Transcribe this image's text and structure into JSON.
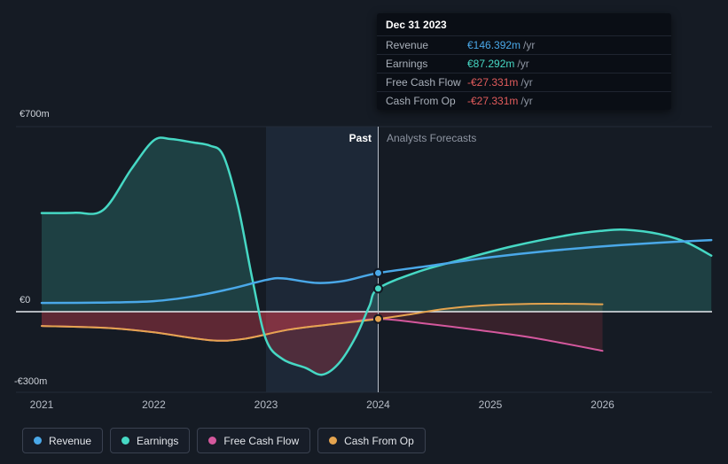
{
  "page": {
    "background": "#151b24"
  },
  "y_axis": {
    "labels": [
      "€700m",
      "€0",
      "-€300m"
    ]
  },
  "x_axis": [
    "2021",
    "2022",
    "2023",
    "2024",
    "2025",
    "2026"
  ],
  "period_labels": {
    "past": "Past",
    "forecast": "Analysts Forecasts"
  },
  "tooltip": {
    "date": "Dec 31 2023",
    "rows": [
      {
        "label": "Revenue",
        "value": "€146.392m",
        "suffix": "/yr",
        "color": "#4aa8e8"
      },
      {
        "label": "Earnings",
        "value": "€87.292m",
        "suffix": "/yr",
        "color": "#46d8c4"
      },
      {
        "label": "Free Cash Flow",
        "value": "-€27.331m",
        "suffix": "/yr",
        "color": "#e25c5c"
      },
      {
        "label": "Cash From Op",
        "value": "-€27.331m",
        "suffix": "/yr",
        "color": "#e25c5c"
      }
    ]
  },
  "legend": [
    {
      "label": "Revenue",
      "color": "#4aa8e8"
    },
    {
      "label": "Earnings",
      "color": "#46d8c4"
    },
    {
      "label": "Free Cash Flow",
      "color": "#d4589d"
    },
    {
      "label": "Cash From Op",
      "color": "#e5a44f"
    }
  ],
  "chart_data": {
    "type": "line",
    "title": "",
    "x_range": [
      2020.77,
      2027.0
    ],
    "y_range": [
      -300,
      700
    ],
    "y_unit": "€m",
    "y_gridlines": [
      700,
      0,
      -300
    ],
    "past_until": 2024,
    "highlight_band": [
      2023,
      2024
    ],
    "colors": {
      "band": "#1d2837",
      "zero_line": "#e6e9ee",
      "divider": "#b9c0ca",
      "grid": "#242b38"
    },
    "series": [
      {
        "id": "free-cash-flow",
        "name": "Free Cash Flow",
        "color": "#d4589d",
        "width": 2,
        "fill_neg": "rgba(196,60,74,0.20)",
        "points": [
          [
            2021,
            -54
          ],
          [
            2021.6,
            -62
          ],
          [
            2022,
            -78
          ],
          [
            2022.5,
            -108
          ],
          [
            2022.8,
            -103
          ],
          [
            2023.2,
            -68
          ],
          [
            2023.6,
            -47
          ],
          [
            2024,
            -27.331
          ],
          [
            2024.4,
            -44
          ],
          [
            2024.9,
            -70
          ],
          [
            2025.4,
            -100
          ],
          [
            2026,
            -148
          ]
        ]
      },
      {
        "id": "cash-from-op",
        "name": "Cash From Op",
        "color": "#e5a44f",
        "width": 2,
        "fill_neg": "rgba(196,60,74,0.28)",
        "fill_pos": "rgba(229,164,79,0.14)",
        "points": [
          [
            2021,
            -54
          ],
          [
            2021.6,
            -62
          ],
          [
            2022,
            -78
          ],
          [
            2022.5,
            -108
          ],
          [
            2022.8,
            -103
          ],
          [
            2023.2,
            -68
          ],
          [
            2023.6,
            -47
          ],
          [
            2024,
            -27.331
          ],
          [
            2024.3,
            -9
          ],
          [
            2024.6,
            11
          ],
          [
            2025,
            25
          ],
          [
            2025.5,
            30
          ],
          [
            2026,
            28
          ]
        ]
      },
      {
        "id": "earnings",
        "name": "Earnings",
        "color": "#46d8c4",
        "width": 2.5,
        "fill_pos": "rgba(70,216,196,0.20)",
        "fill_neg": "rgba(196,60,74,0.30)",
        "points": [
          [
            2021,
            373
          ],
          [
            2021.3,
            374
          ],
          [
            2021.55,
            385
          ],
          [
            2021.8,
            540
          ],
          [
            2022,
            648
          ],
          [
            2022.15,
            653
          ],
          [
            2022.35,
            640
          ],
          [
            2022.5,
            628
          ],
          [
            2022.62,
            590
          ],
          [
            2022.75,
            400
          ],
          [
            2022.88,
            120
          ],
          [
            2023,
            -105
          ],
          [
            2023.15,
            -180
          ],
          [
            2023.35,
            -212
          ],
          [
            2023.5,
            -238
          ],
          [
            2023.65,
            -195
          ],
          [
            2023.8,
            -95
          ],
          [
            2023.92,
            20
          ],
          [
            2024,
            87.292
          ],
          [
            2024.35,
            150
          ],
          [
            2024.75,
            198
          ],
          [
            2025.2,
            248
          ],
          [
            2025.7,
            290
          ],
          [
            2026,
            306
          ],
          [
            2026.2,
            310
          ],
          [
            2026.5,
            294
          ],
          [
            2026.75,
            262
          ],
          [
            2026.97,
            212
          ]
        ]
      },
      {
        "id": "revenue",
        "name": "Revenue",
        "color": "#4aa8e8",
        "width": 2.5,
        "points": [
          [
            2021,
            33
          ],
          [
            2021.5,
            34
          ],
          [
            2022,
            40
          ],
          [
            2022.35,
            58
          ],
          [
            2022.7,
            88
          ],
          [
            2023,
            120
          ],
          [
            2023.15,
            126
          ],
          [
            2023.45,
            109
          ],
          [
            2023.7,
            117
          ],
          [
            2024,
            146.392
          ],
          [
            2024.5,
            176
          ],
          [
            2025,
            206
          ],
          [
            2025.5,
            229
          ],
          [
            2026,
            247
          ],
          [
            2026.5,
            261
          ],
          [
            2026.97,
            271
          ]
        ]
      }
    ],
    "markers": [
      {
        "year": 2024,
        "value": 146.392,
        "series": "revenue",
        "color": "#4aa8e8"
      },
      {
        "year": 2024,
        "value": 87.292,
        "series": "earnings",
        "color": "#46d8c4"
      },
      {
        "year": 2024,
        "value": -27.331,
        "series": "cash-from-op",
        "color": "#e5a44f"
      }
    ]
  }
}
